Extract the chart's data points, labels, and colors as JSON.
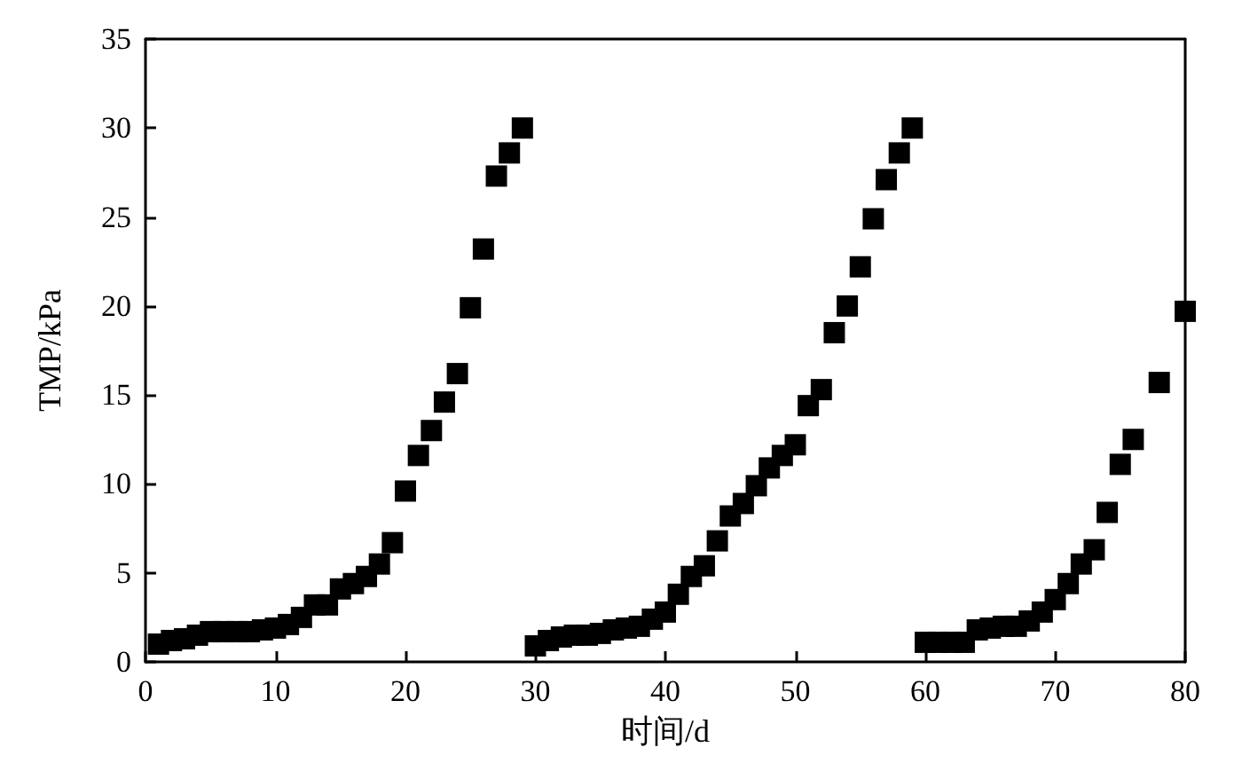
{
  "chart_data": {
    "type": "scatter",
    "xlabel": "时间/d",
    "ylabel": "TMP/kPa",
    "marker": "square",
    "xlim": [
      0,
      80
    ],
    "xticks": [
      0,
      10,
      20,
      30,
      40,
      50,
      60,
      70,
      80
    ],
    "ylim": [
      0,
      35
    ],
    "yticks": [
      0,
      5,
      10,
      15,
      20,
      25,
      30,
      35
    ],
    "series": [
      {
        "color": "#000000",
        "x": [
          1,
          2,
          3,
          4,
          5,
          6,
          7,
          8,
          9,
          10,
          11,
          12,
          13,
          14,
          15,
          16,
          17,
          18,
          19,
          20,
          21,
          22,
          23,
          24,
          25,
          26,
          27,
          28,
          29,
          30,
          31,
          32,
          33,
          34,
          35,
          36,
          37,
          38,
          39,
          40,
          41,
          42,
          43,
          44,
          45,
          46,
          47,
          48,
          49,
          50,
          51,
          52,
          53,
          54,
          55,
          56,
          57,
          58,
          59,
          60,
          61,
          62,
          63,
          64,
          65,
          66,
          67,
          68,
          69,
          70,
          71,
          72,
          73,
          74,
          75,
          76,
          78,
          80
        ],
        "values": [
          1.0,
          1.2,
          1.3,
          1.5,
          1.7,
          1.7,
          1.7,
          1.7,
          1.8,
          1.9,
          2.1,
          2.5,
          3.2,
          3.2,
          4.1,
          4.4,
          4.8,
          5.5,
          6.7,
          9.6,
          11.6,
          13.0,
          14.6,
          16.2,
          19.9,
          23.2,
          27.3,
          28.6,
          30.0,
          0.9,
          1.2,
          1.4,
          1.5,
          1.5,
          1.6,
          1.8,
          1.9,
          2.0,
          2.4,
          2.8,
          3.8,
          4.8,
          5.4,
          6.8,
          8.2,
          8.9,
          9.9,
          10.9,
          11.6,
          12.2,
          14.4,
          15.3,
          18.5,
          20.0,
          22.2,
          24.9,
          27.1,
          28.6,
          30.0,
          1.1,
          1.1,
          1.1,
          1.1,
          1.8,
          1.9,
          2.0,
          2.0,
          2.3,
          2.8,
          3.5,
          4.4,
          5.5,
          6.3,
          8.4,
          11.1,
          12.5,
          15.7,
          19.7
        ]
      }
    ]
  }
}
